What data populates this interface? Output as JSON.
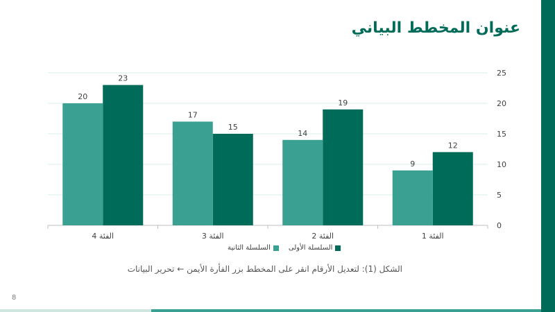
{
  "slide": {
    "title": "عنوان المخطط البياني",
    "caption": "الشكل (1): لتعديل الأرقام انقر على المخطط بزر الفأرة الأيمن ← تحرير البيانات",
    "page_number": "8"
  },
  "colors": {
    "accent_dark": "#006b58",
    "series1": "#006b58",
    "series2": "#3aa192",
    "grid": "#d9ecea"
  },
  "chart_data": {
    "type": "bar",
    "categories": [
      "الفئة 1",
      "الفئة 2",
      "الفئة 3",
      "الفئة 4"
    ],
    "category_order": "right-to-left",
    "series": [
      {
        "name": "السلسلة الأولى",
        "values": [
          12,
          19,
          15,
          23
        ],
        "color": "#006b58"
      },
      {
        "name": "السلسلة الثانية",
        "values": [
          9,
          14,
          17,
          20
        ],
        "color": "#3aa192"
      }
    ],
    "ylim": [
      0,
      25
    ],
    "yticks": [
      0,
      5,
      10,
      15,
      20,
      25
    ],
    "y_axis_side": "right",
    "grid": true,
    "legend": "bottom",
    "data_labels": true
  }
}
